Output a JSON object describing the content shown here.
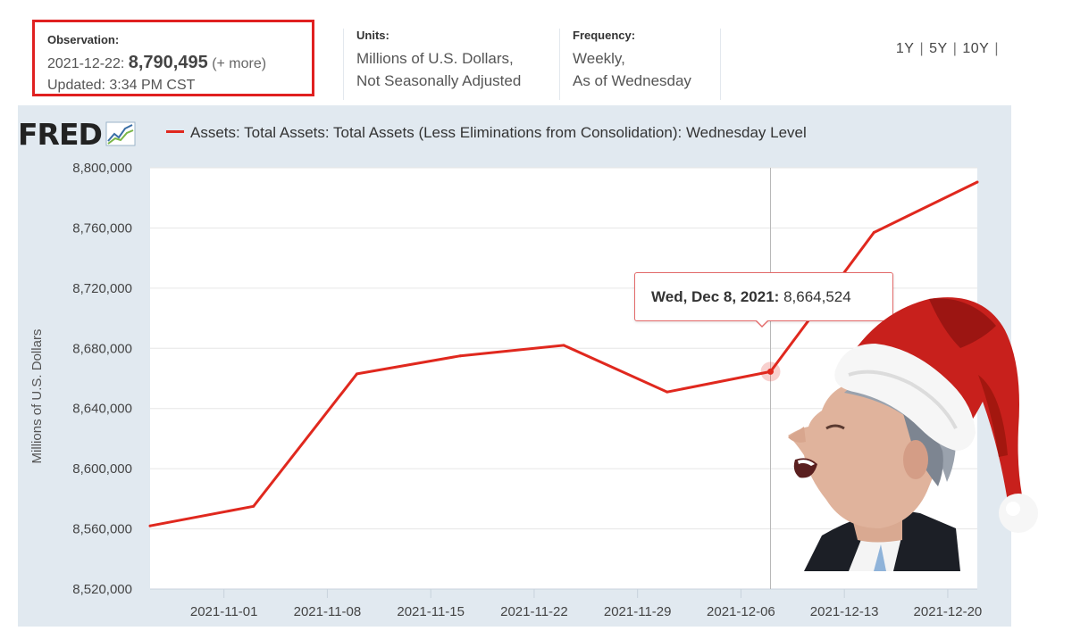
{
  "header": {
    "observation": {
      "label": "Observation:",
      "date": "2021-12-22:",
      "value": "8,790,495",
      "more": "(+ more)",
      "updated": "Updated: 3:34 PM CST"
    },
    "units": {
      "label": "Units:",
      "line1": "Millions of U.S. Dollars,",
      "line2": "Not Seasonally Adjusted"
    },
    "frequency": {
      "label": "Frequency:",
      "line1": "Weekly,",
      "line2": "As of Wednesday"
    },
    "ranges": [
      "1Y",
      "5Y",
      "10Y"
    ]
  },
  "logo": "FRED",
  "colors": {
    "series": "#e0281e",
    "panel": "#e1e9f0",
    "plot_bg": "#ffffff",
    "highlight_box": "#e02020"
  },
  "chart_data": {
    "type": "line",
    "title": "Assets: Total Assets: Total Assets (Less Eliminations from Consolidation): Wednesday Level",
    "ylabel": "Millions of U.S. Dollars",
    "xlabel": "",
    "ylim": [
      8520000,
      8800000
    ],
    "yticks": [
      8520000,
      8560000,
      8600000,
      8640000,
      8680000,
      8720000,
      8760000,
      8800000
    ],
    "ytick_labels": [
      "8,520,000",
      "8,560,000",
      "8,600,000",
      "8,640,000",
      "8,680,000",
      "8,720,000",
      "8,760,000",
      "8,800,000"
    ],
    "xlim": [
      "2021-10-27",
      "2021-12-22"
    ],
    "xticks": [
      "2021-11-01",
      "2021-11-08",
      "2021-11-15",
      "2021-11-22",
      "2021-11-29",
      "2021-12-06",
      "2021-12-13",
      "2021-12-20"
    ],
    "grid": "horizontal",
    "series": [
      {
        "name": "Assets: Total Assets: Total Assets (Less Eliminations from Consolidation): Wednesday Level",
        "x": [
          "2021-10-27",
          "2021-11-03",
          "2021-11-10",
          "2021-11-17",
          "2021-11-24",
          "2021-12-01",
          "2021-12-08",
          "2021-12-15",
          "2021-12-22"
        ],
        "y": [
          8562000,
          8575000,
          8663000,
          8675000,
          8682000,
          8651000,
          8664524,
          8757000,
          8790495
        ]
      }
    ],
    "tooltip": {
      "date": "Wed, Dec 8, 2021:",
      "value": "8,664,524",
      "x": "2021-12-08"
    }
  }
}
